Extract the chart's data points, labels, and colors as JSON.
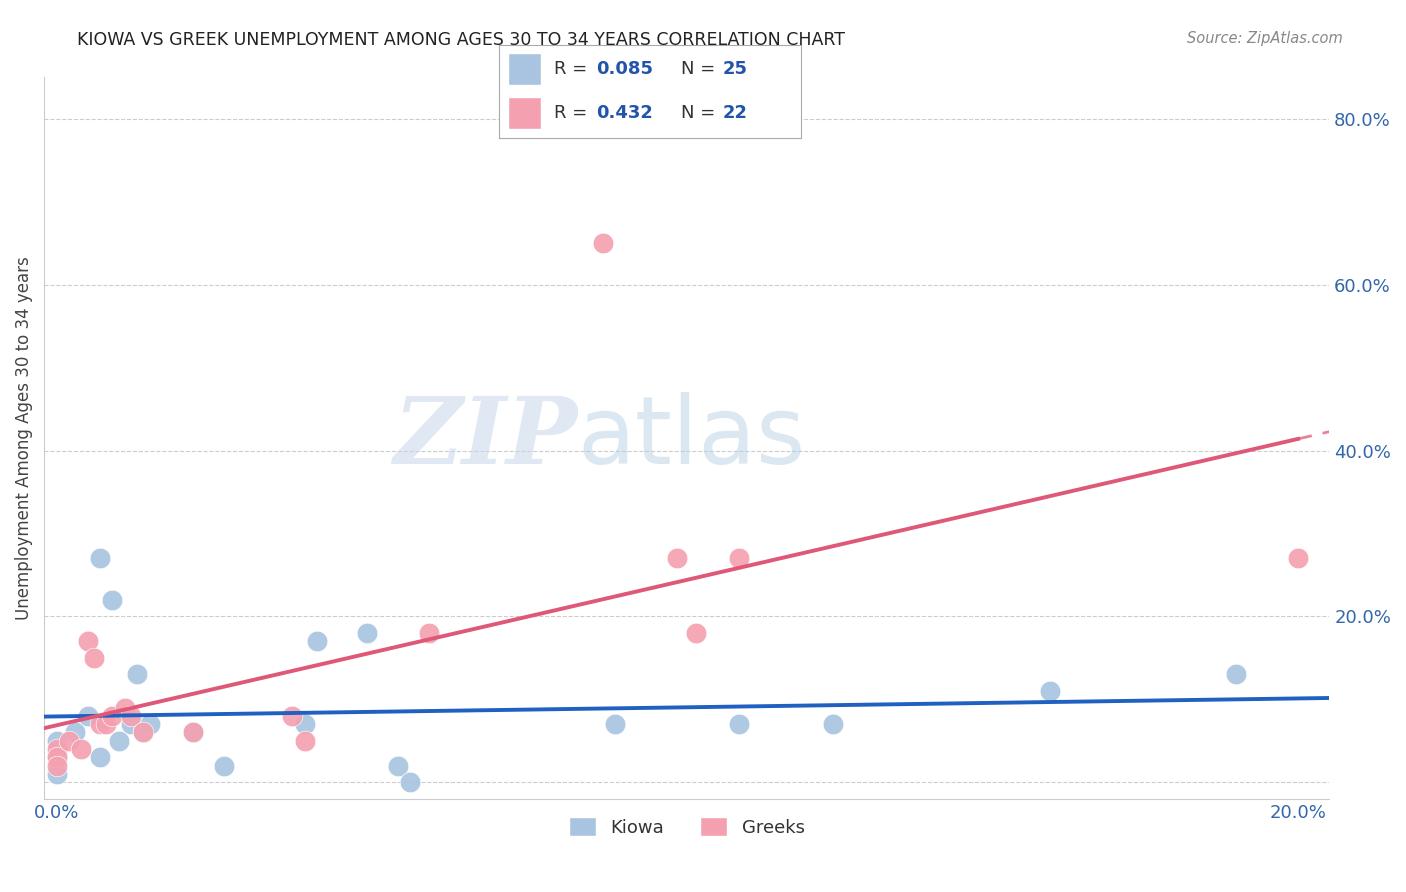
{
  "title": "KIOWA VS GREEK UNEMPLOYMENT AMONG AGES 30 TO 34 YEARS CORRELATION CHART",
  "source": "Source: ZipAtlas.com",
  "ylabel": "Unemployment Among Ages 30 to 34 years",
  "xlim": [
    -0.002,
    0.205
  ],
  "ylim": [
    -0.02,
    0.85
  ],
  "xticks": [
    0.0,
    0.05,
    0.1,
    0.15,
    0.2
  ],
  "xticklabels": [
    "0.0%",
    "",
    "",
    "",
    "20.0%"
  ],
  "yticks": [
    0.0,
    0.2,
    0.4,
    0.6,
    0.8
  ],
  "yticklabels": [
    "",
    "20.0%",
    "40.0%",
    "60.0%",
    "80.0%"
  ],
  "kiowa_R": 0.085,
  "kiowa_N": 25,
  "greek_R": 0.432,
  "greek_N": 22,
  "kiowa_color": "#a8c4e0",
  "greek_color": "#f4a0b0",
  "kiowa_line_color": "#2060c0",
  "greek_line_color": "#e05878",
  "kiowa_x": [
    0.0,
    0.0,
    0.0,
    0.003,
    0.005,
    0.007,
    0.007,
    0.009,
    0.01,
    0.012,
    0.013,
    0.014,
    0.015,
    0.022,
    0.027,
    0.04,
    0.042,
    0.05,
    0.055,
    0.057,
    0.09,
    0.11,
    0.125,
    0.16,
    0.19
  ],
  "kiowa_y": [
    0.05,
    0.03,
    0.01,
    0.06,
    0.08,
    0.03,
    0.27,
    0.22,
    0.05,
    0.07,
    0.13,
    0.06,
    0.07,
    0.06,
    0.02,
    0.07,
    0.17,
    0.18,
    0.02,
    0.0,
    0.07,
    0.07,
    0.07,
    0.11,
    0.13
  ],
  "greek_x": [
    0.0,
    0.0,
    0.0,
    0.002,
    0.004,
    0.005,
    0.006,
    0.007,
    0.008,
    0.009,
    0.011,
    0.012,
    0.014,
    0.022,
    0.038,
    0.04,
    0.06,
    0.088,
    0.1,
    0.103,
    0.11,
    0.2
  ],
  "greek_y": [
    0.04,
    0.03,
    0.02,
    0.05,
    0.04,
    0.17,
    0.15,
    0.07,
    0.07,
    0.08,
    0.09,
    0.08,
    0.06,
    0.06,
    0.08,
    0.05,
    0.18,
    0.65,
    0.27,
    0.18,
    0.27,
    0.27
  ],
  "watermark_zip": "ZIP",
  "watermark_atlas": "atlas",
  "background_color": "#ffffff",
  "legend_R1": "R = 0.085",
  "legend_N1": "N = 25",
  "legend_R2": "R = 0.432",
  "legend_N2": "N = 22",
  "legend_bottom": [
    "Kiowa",
    "Greeks"
  ]
}
